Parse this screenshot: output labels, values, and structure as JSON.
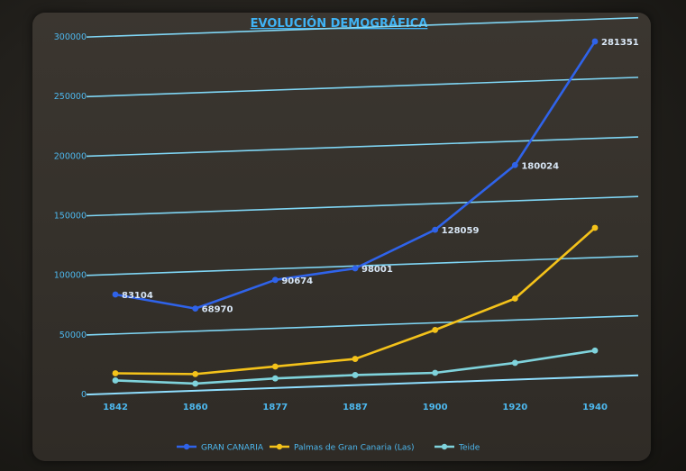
{
  "chart_data": {
    "type": "line",
    "title": "EVOLUCIÓN DEMOGRÁFICA",
    "xlabel": "",
    "ylabel": "",
    "categories": [
      "1842",
      "1860",
      "1877",
      "1887",
      "1900",
      "1920",
      "1940"
    ],
    "ylim": [
      0,
      300000
    ],
    "yticks": [
      "0",
      "50000",
      "100000",
      "150000",
      "200000",
      "250000",
      "300000"
    ],
    "grid": true,
    "legend_position": "bottom",
    "series": [
      {
        "name": "GRAN CANARIA",
        "color": "#2f63ea",
        "values": [
          83104,
          68970,
          90674,
          98001,
          128059,
          180024,
          281351
        ],
        "labels": [
          "83104",
          "68970",
          "90674",
          "98001",
          "128059",
          "180024",
          "281351"
        ]
      },
      {
        "name": "Palmas de Gran Canaria (Las)",
        "color": "#f4c21a",
        "values": [
          17000,
          14000,
          18000,
          22000,
          44000,
          68000,
          125000
        ]
      },
      {
        "name": "Teide",
        "color": "#7fd3dc",
        "values": [
          11000,
          6000,
          8000,
          8500,
          8000,
          14000,
          22000
        ]
      }
    ]
  }
}
